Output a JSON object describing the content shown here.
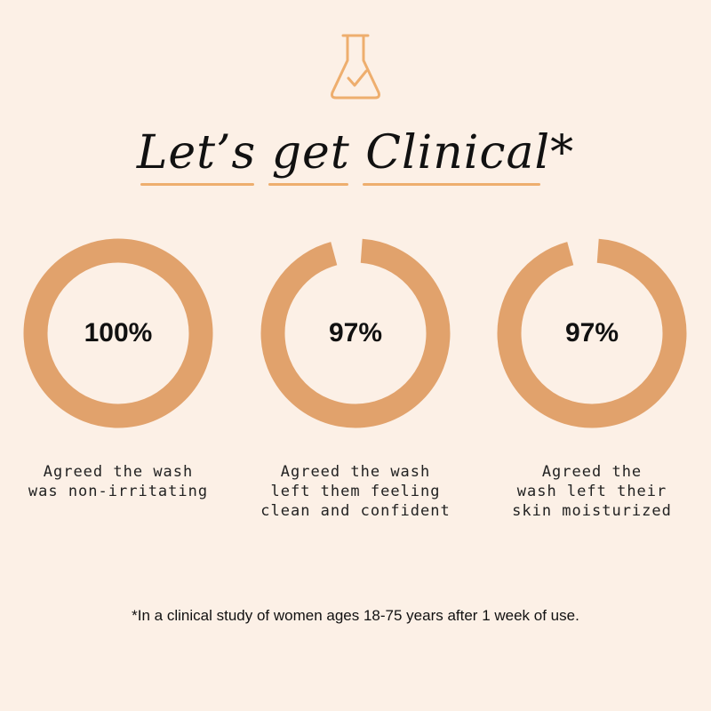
{
  "header": {
    "icon": "flask-check-icon",
    "title": "Let’s get Clinical*",
    "accent_color": "#eeae6e"
  },
  "stats": [
    {
      "value": "100%",
      "fraction": 1.0,
      "caption": "Agreed the wash\nwas non-irritating"
    },
    {
      "value": "97%",
      "fraction": 0.97,
      "caption": "Agreed the wash\nleft them feeling\nclean and confident"
    },
    {
      "value": "97%",
      "fraction": 0.97,
      "caption": "Agreed the\nwash left their\nskin moisturized"
    }
  ],
  "ring_color": "#e1a26c",
  "footnote": "*In a clinical study of women ages 18-75 years after 1 week of use."
}
